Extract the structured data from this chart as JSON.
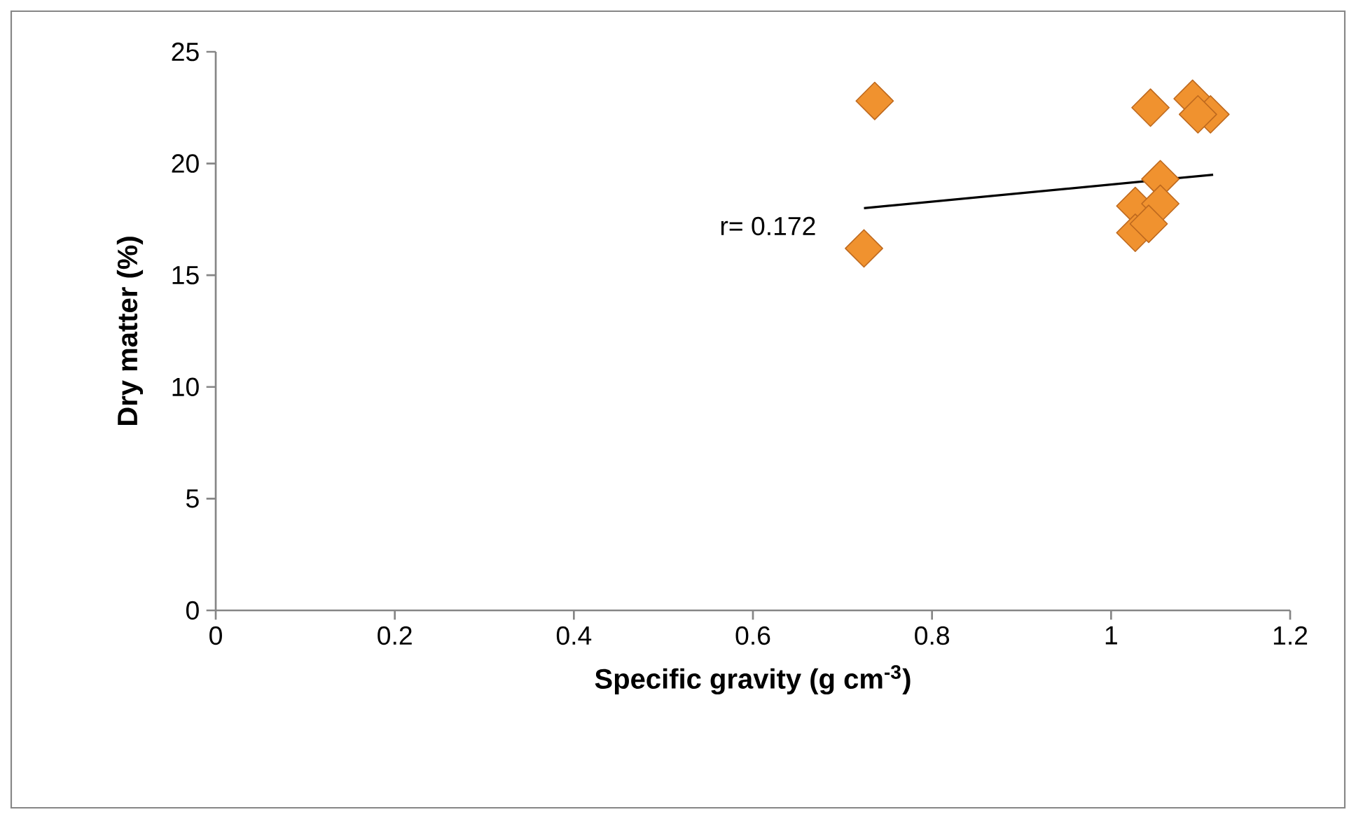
{
  "chart_data": {
    "type": "scatter",
    "xlabel": "Specific gravity (g cm$^{-3}$)",
    "ylabel": "Dry matter (%)",
    "xlim": [
      0,
      1.2
    ],
    "ylim": [
      0,
      25
    ],
    "xticks": [
      0,
      0.2,
      0.4,
      0.6,
      0.8,
      1,
      1.2
    ],
    "yticks": [
      0,
      5,
      10,
      15,
      20,
      25
    ],
    "grid": false,
    "marker": "diamond",
    "series": [
      {
        "color": "#f0922f",
        "x": [
          0.736,
          0.724,
          1.044,
          1.091,
          1.111,
          1.097,
          1.055,
          1.027,
          1.055,
          1.027,
          1.042
        ],
        "values": [
          22.8,
          16.2,
          22.5,
          22.9,
          22.2,
          22.2,
          19.3,
          18.1,
          18.2,
          16.9,
          17.3
        ]
      },
      {
        "type": "line",
        "color": "#000000",
        "marker": "none",
        "x": [
          0.724,
          1.114
        ],
        "values": [
          18.0,
          19.5
        ]
      }
    ],
    "annotations": [
      "r= 0.172"
    ]
  }
}
